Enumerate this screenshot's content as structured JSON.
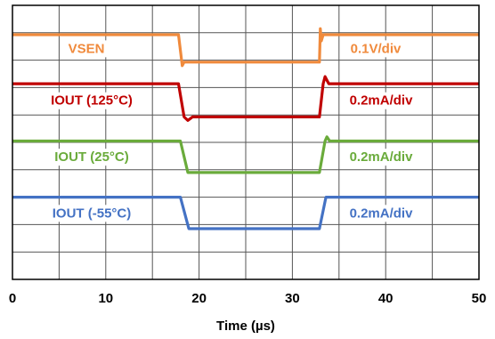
{
  "chart_data": {
    "type": "line",
    "xlabel": "Time (µs)",
    "xlim": [
      0,
      50
    ],
    "x_ticks": [
      0,
      10,
      20,
      30,
      40,
      50
    ],
    "tick_labels": [
      "0",
      "10",
      "20",
      "30",
      "40",
      "50"
    ],
    "y_divisions": 10,
    "grid": true,
    "legend": "inline labels",
    "series": [
      {
        "name": "VSEN",
        "scale": "0.1V/div",
        "color": "#f08a3c",
        "high_div": 8.93,
        "low_div": 7.93,
        "x": [
          0,
          17.8,
          18.2,
          18.4,
          32.9,
          33.0,
          33.1,
          33.3,
          50
        ],
        "y": [
          8.93,
          8.93,
          7.8,
          7.93,
          7.93,
          9.15,
          8.7,
          8.93,
          8.93
        ]
      },
      {
        "name": "IOUT (125°C)",
        "scale": "0.2mA/div",
        "color": "#c00000",
        "high_div": 7.14,
        "low_div": 5.93,
        "x": [
          0,
          17.8,
          18.4,
          18.8,
          19.3,
          32.9,
          33.3,
          33.5,
          33.9,
          50
        ],
        "y": [
          7.14,
          7.14,
          5.93,
          5.8,
          5.93,
          5.93,
          7.14,
          7.4,
          7.14,
          7.14
        ]
      },
      {
        "name": "IOUT (25°C)",
        "scale": "0.2mA/div",
        "color": "#6aab3b",
        "high_div": 5.05,
        "low_div": 3.9,
        "x": [
          0,
          18.0,
          18.8,
          19.2,
          32.9,
          33.5,
          33.7,
          34.0,
          50
        ],
        "y": [
          5.05,
          5.05,
          3.9,
          3.9,
          3.9,
          5.05,
          5.2,
          5.05,
          5.05
        ]
      },
      {
        "name": "IOUT (-55°C)",
        "scale": "0.2mA/div",
        "color": "#4472c4",
        "high_div": 3.0,
        "low_div": 1.85,
        "x": [
          0,
          18.0,
          18.9,
          19.4,
          32.9,
          33.6,
          34.0,
          50
        ],
        "y": [
          3.0,
          3.0,
          1.85,
          1.85,
          1.85,
          3.0,
          3.0,
          3.0
        ]
      }
    ]
  }
}
